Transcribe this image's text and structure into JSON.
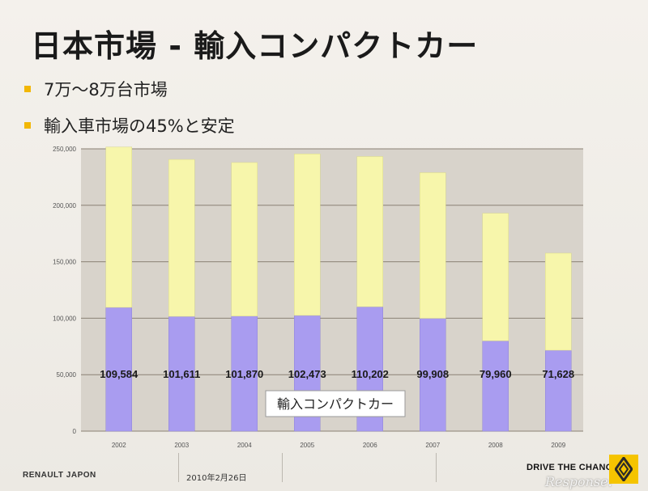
{
  "slide": {
    "title": "日本市場 - 輸入コンパクトカー",
    "bullets": [
      "7万～8万台市場",
      "輸入車市場の45%と安定"
    ]
  },
  "footer": {
    "brand": "RENAULT JAPON",
    "date": "2010年2月26日",
    "tagline": "DRIVE THE CHANGE",
    "watermark": "Response."
  },
  "colors": {
    "compact": "#a99cf0",
    "total": "#f7f6ab",
    "plot_bg": "#d8d3cb",
    "accent": "#f2b705"
  },
  "chart_data": {
    "type": "bar",
    "stacked": true,
    "categories": [
      "2002",
      "2003",
      "2004",
      "2005",
      "2006",
      "2007",
      "2008",
      "2009"
    ],
    "series": [
      {
        "name": "輸入コンパクトカー",
        "values": [
          109584,
          101611,
          101870,
          102473,
          110202,
          99908,
          79960,
          71628
        ]
      },
      {
        "values": [
          142000,
          139000,
          136000,
          143000,
          133000,
          129000,
          113000,
          86000
        ]
      }
    ],
    "data_labels": [
      "109,584",
      "101,611",
      "101,870",
      "102,473",
      "110,202",
      "99,908",
      "79,960",
      "71,628"
    ],
    "yticks": [
      "0",
      "50,000",
      "100,000",
      "150,000",
      "200,000",
      "250,000"
    ],
    "ylim": [
      0,
      250000
    ],
    "legend_text": "輸入コンパクトカー",
    "grid": true,
    "legend_position": "bottom-center"
  }
}
